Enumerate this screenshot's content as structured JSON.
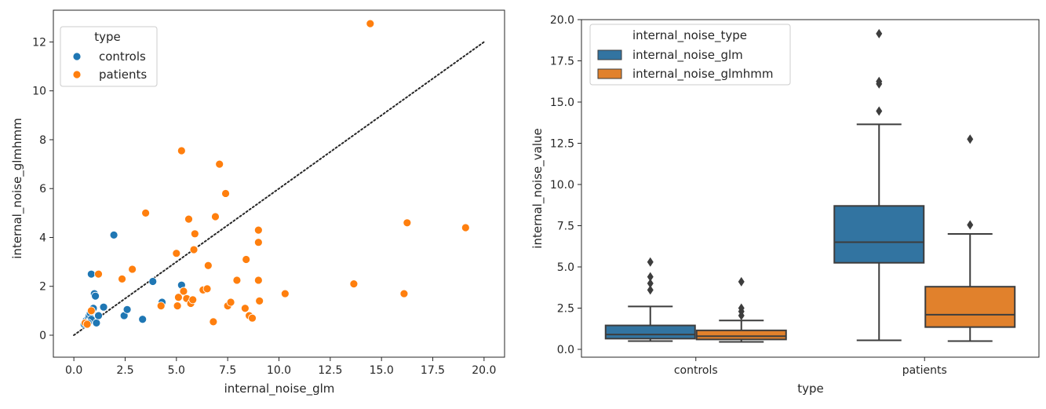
{
  "chart_data": [
    {
      "type": "scatter",
      "xlabel": "internal_noise_glm",
      "ylabel": "internal_noise_glmhmm",
      "xlim": [
        -1.0,
        21.0
      ],
      "ylim": [
        -0.9,
        13.3
      ],
      "xticks": [
        0.0,
        2.5,
        5.0,
        7.5,
        10.0,
        12.5,
        15.0,
        17.5,
        20.0
      ],
      "xtick_labels": [
        "0.0",
        "2.5",
        "5.0",
        "7.5",
        "10.0",
        "12.5",
        "15.0",
        "17.5",
        "20.0"
      ],
      "yticks": [
        0,
        2,
        4,
        6,
        8,
        10,
        12
      ],
      "ytick_labels": [
        "0",
        "2",
        "4",
        "6",
        "8",
        "10",
        "12"
      ],
      "grid": false,
      "legend_title": "type",
      "legend_placement": "top-left",
      "reference_line": {
        "style": "dotted",
        "x": [
          0,
          20
        ],
        "y": [
          0,
          12
        ]
      },
      "series": [
        {
          "name": "controls",
          "color": "#1f77b4",
          "points": [
            [
              0.55,
              0.5
            ],
            [
              0.6,
              0.6
            ],
            [
              0.65,
              0.55
            ],
            [
              0.7,
              0.7
            ],
            [
              0.75,
              0.8
            ],
            [
              0.8,
              0.9
            ],
            [
              0.85,
              0.65
            ],
            [
              0.9,
              1.0
            ],
            [
              0.95,
              1.1
            ],
            [
              1.0,
              1.7
            ],
            [
              1.05,
              1.6
            ],
            [
              0.85,
              2.5
            ],
            [
              1.1,
              0.5
            ],
            [
              1.2,
              0.8
            ],
            [
              1.45,
              1.15
            ],
            [
              1.95,
              4.1
            ],
            [
              2.45,
              0.8
            ],
            [
              2.6,
              1.05
            ],
            [
              3.35,
              0.65
            ],
            [
              3.85,
              2.2
            ],
            [
              4.3,
              1.35
            ],
            [
              5.25,
              2.05
            ],
            [
              0.5,
              0.45
            ],
            [
              0.7,
              0.5
            ]
          ]
        },
        {
          "name": "patients",
          "color": "#ff7f0e",
          "points": [
            [
              0.55,
              0.5
            ],
            [
              0.65,
              0.45
            ],
            [
              0.85,
              1.0
            ],
            [
              1.2,
              2.5
            ],
            [
              2.35,
              2.3
            ],
            [
              2.85,
              2.7
            ],
            [
              3.5,
              5.0
            ],
            [
              4.25,
              1.2
            ],
            [
              5.0,
              3.35
            ],
            [
              5.05,
              1.2
            ],
            [
              5.1,
              1.55
            ],
            [
              5.25,
              7.55
            ],
            [
              5.35,
              1.8
            ],
            [
              5.5,
              1.5
            ],
            [
              5.6,
              4.75
            ],
            [
              5.7,
              1.3
            ],
            [
              5.8,
              1.45
            ],
            [
              5.85,
              3.5
            ],
            [
              5.9,
              4.15
            ],
            [
              6.3,
              1.85
            ],
            [
              6.5,
              1.9
            ],
            [
              6.55,
              2.85
            ],
            [
              6.8,
              0.55
            ],
            [
              6.9,
              4.85
            ],
            [
              7.1,
              7.0
            ],
            [
              7.4,
              5.8
            ],
            [
              7.5,
              1.2
            ],
            [
              7.65,
              1.35
            ],
            [
              7.95,
              2.25
            ],
            [
              8.35,
              1.1
            ],
            [
              8.4,
              3.1
            ],
            [
              8.55,
              0.8
            ],
            [
              8.7,
              0.7
            ],
            [
              9.0,
              4.3
            ],
            [
              9.0,
              3.8
            ],
            [
              9.0,
              2.25
            ],
            [
              9.05,
              1.4
            ],
            [
              10.3,
              1.7
            ],
            [
              13.65,
              2.1
            ],
            [
              14.45,
              12.75
            ],
            [
              16.1,
              1.7
            ],
            [
              16.25,
              4.6
            ],
            [
              19.1,
              4.4
            ]
          ]
        }
      ]
    },
    {
      "type": "box",
      "xlabel": "type",
      "ylabel": "internal_noise_value",
      "categories": [
        "controls",
        "patients"
      ],
      "ylim": [
        -0.5,
        20.0
      ],
      "yticks": [
        0.0,
        2.5,
        5.0,
        7.5,
        10.0,
        12.5,
        15.0,
        17.5,
        20.0
      ],
      "ytick_labels": [
        "0.0",
        "2.5",
        "5.0",
        "7.5",
        "10.0",
        "12.5",
        "15.0",
        "17.5",
        "20.0"
      ],
      "grid": false,
      "legend_title": "internal_noise_type",
      "legend_placement": "top-left",
      "series": [
        {
          "name": "internal_noise_glm",
          "color": "#3274a1",
          "boxes": [
            {
              "category": "controls",
              "whisker_low": 0.5,
              "q1": 0.65,
              "median": 0.9,
              "q3": 1.45,
              "whisker_high": 2.6,
              "outliers": [
                3.6,
                4.0,
                4.4,
                5.3
              ]
            },
            {
              "category": "patients",
              "whisker_low": 0.55,
              "q1": 5.25,
              "median": 6.5,
              "q3": 8.7,
              "whisker_high": 13.65,
              "outliers": [
                14.45,
                16.1,
                16.25,
                19.15
              ]
            }
          ]
        },
        {
          "name": "internal_noise_glmhmm",
          "color": "#e1812c",
          "boxes": [
            {
              "category": "controls",
              "whisker_low": 0.45,
              "q1": 0.6,
              "median": 0.8,
              "q3": 1.15,
              "whisker_high": 1.75,
              "outliers": [
                2.05,
                2.3,
                2.5,
                4.1
              ]
            },
            {
              "category": "patients",
              "whisker_low": 0.5,
              "q1": 1.35,
              "median": 2.1,
              "q3": 3.8,
              "whisker_high": 7.0,
              "outliers": [
                7.55,
                12.75
              ]
            }
          ]
        }
      ]
    }
  ]
}
